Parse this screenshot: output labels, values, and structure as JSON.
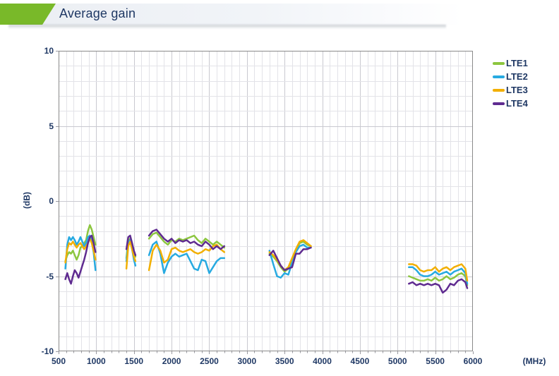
{
  "header": {
    "title": "Average gain"
  },
  "colors": {
    "accent_green": "#79B929",
    "title_text": "#1F3864",
    "axis_text": "#1F3864",
    "grid_minor": "#e3e3e8",
    "grid_major": "#c9c9d0",
    "plot_border": "#8a8a8a"
  },
  "chart_data": {
    "type": "line",
    "title": "Average gain",
    "xlabel": "(MHz)",
    "ylabel": "(dB)",
    "xlim": [
      500,
      6000
    ],
    "ylim": [
      -10,
      10
    ],
    "x_ticks": [
      500,
      1000,
      1500,
      2000,
      2500,
      3000,
      3500,
      4000,
      4500,
      5000,
      5500,
      6000
    ],
    "y_ticks": [
      10,
      5,
      0,
      -5,
      -10
    ],
    "x_minor_step": 100,
    "y_minor_step": 1,
    "grid": true,
    "legend_position": "top-right",
    "segment_x": [
      [
        590,
        615,
        640,
        665,
        690,
        715,
        740,
        765,
        790,
        815,
        840,
        865,
        890,
        915,
        940,
        965,
        990
      ],
      [
        1400,
        1425,
        1450,
        1475,
        1500,
        1520
      ],
      [
        1700,
        1750,
        1800,
        1850,
        1900,
        1950,
        2000,
        2050,
        2100,
        2150,
        2200,
        2250,
        2300,
        2350,
        2400,
        2450,
        2500,
        2550,
        2600,
        2650,
        2700
      ],
      [
        3300,
        3350,
        3400,
        3450,
        3500,
        3550,
        3600,
        3650,
        3700,
        3750,
        3800,
        3850
      ],
      [
        5150,
        5200,
        5250,
        5300,
        5350,
        5400,
        5450,
        5500,
        5550,
        5600,
        5650,
        5700,
        5750,
        5800,
        5850,
        5900,
        5925
      ]
    ],
    "series": [
      {
        "name": "LTE1",
        "color": "#8CC63F",
        "segments_y": [
          [
            -4.0,
            -3.6,
            -3.4,
            -3.5,
            -3.3,
            -3.6,
            -3.9,
            -3.6,
            -3.1,
            -3.0,
            -2.8,
            -2.6,
            -2.0,
            -1.6,
            -1.9,
            -2.4,
            -2.9
          ],
          [
            -3.8,
            -2.6,
            -2.5,
            -3.0,
            -3.4,
            -3.7
          ],
          [
            -2.5,
            -2.2,
            -2.1,
            -2.4,
            -2.7,
            -2.9,
            -2.6,
            -2.7,
            -2.5,
            -2.6,
            -2.5,
            -2.4,
            -2.3,
            -2.6,
            -2.8,
            -2.5,
            -2.7,
            -2.9,
            -2.7,
            -2.9,
            -3.1
          ],
          [
            -3.5,
            -3.7,
            -4.0,
            -4.4,
            -4.7,
            -4.5,
            -3.9,
            -3.3,
            -2.8,
            -2.7,
            -2.9,
            -3.0
          ],
          [
            -5.0,
            -5.1,
            -5.2,
            -5.3,
            -5.3,
            -5.2,
            -5.3,
            -5.1,
            -5.3,
            -5.2,
            -5.0,
            -5.2,
            -5.1,
            -4.9,
            -4.8,
            -5.0,
            -5.6
          ]
        ]
      },
      {
        "name": "LTE2",
        "color": "#27AAE1",
        "segments_y": [
          [
            -4.5,
            -2.9,
            -2.4,
            -2.6,
            -2.4,
            -2.6,
            -2.9,
            -2.7,
            -2.4,
            -2.7,
            -3.0,
            -2.8,
            -2.4,
            -2.3,
            -2.7,
            -3.4,
            -4.6
          ],
          [
            -4.0,
            -2.8,
            -2.6,
            -3.2,
            -3.9,
            -4.3
          ],
          [
            -3.6,
            -2.9,
            -2.7,
            -3.5,
            -4.8,
            -4.1,
            -3.7,
            -3.5,
            -3.7,
            -3.6,
            -3.5,
            -4.0,
            -4.5,
            -4.6,
            -3.9,
            -4.0,
            -4.8,
            -4.4,
            -4.0,
            -3.8,
            -3.8
          ],
          [
            -3.3,
            -4.2,
            -5.0,
            -5.1,
            -4.8,
            -4.9,
            -4.1,
            -3.4,
            -3.0,
            -2.9,
            -3.1,
            -3.1
          ],
          [
            -4.4,
            -4.4,
            -4.6,
            -4.9,
            -5.0,
            -5.0,
            -4.9,
            -4.7,
            -4.9,
            -4.8,
            -4.7,
            -4.9,
            -4.7,
            -4.6,
            -4.5,
            -4.8,
            -5.5
          ]
        ]
      },
      {
        "name": "LTE3",
        "color": "#F2AF00",
        "segments_y": [
          [
            -4.1,
            -3.2,
            -2.8,
            -2.9,
            -2.7,
            -2.9,
            -3.1,
            -2.9,
            -2.8,
            -3.0,
            -3.2,
            -3.0,
            -2.8,
            -2.5,
            -2.8,
            -3.3,
            -3.9
          ],
          [
            -4.5,
            -3.0,
            -2.7,
            -3.2,
            -3.7,
            -4.0
          ],
          [
            -4.6,
            -3.3,
            -2.9,
            -3.3,
            -4.1,
            -3.9,
            -3.2,
            -3.1,
            -3.3,
            -3.4,
            -3.3,
            -3.2,
            -3.4,
            -3.5,
            -3.4,
            -3.2,
            -3.3,
            -3.0,
            -2.9,
            -3.2,
            -3.4
          ],
          [
            -3.4,
            -3.6,
            -3.9,
            -4.3,
            -4.6,
            -4.4,
            -3.8,
            -3.2,
            -2.7,
            -2.6,
            -2.8,
            -3.0
          ],
          [
            -4.2,
            -4.2,
            -4.3,
            -4.6,
            -4.7,
            -4.6,
            -4.6,
            -4.4,
            -4.7,
            -4.5,
            -4.4,
            -4.6,
            -4.4,
            -4.3,
            -4.2,
            -4.5,
            -5.3
          ]
        ]
      },
      {
        "name": "LTE4",
        "color": "#5F2B90",
        "segments_y": [
          [
            -5.2,
            -4.8,
            -5.2,
            -5.5,
            -5.0,
            -4.6,
            -4.8,
            -5.1,
            -4.7,
            -4.3,
            -3.9,
            -3.4,
            -2.8,
            -2.4,
            -2.3,
            -2.8,
            -3.4
          ],
          [
            -3.2,
            -2.4,
            -2.3,
            -2.8,
            -3.3,
            -3.6
          ],
          [
            -2.3,
            -2.0,
            -1.9,
            -2.2,
            -2.5,
            -2.7,
            -2.5,
            -2.8,
            -2.6,
            -2.7,
            -2.6,
            -2.8,
            -2.7,
            -2.9,
            -3.0,
            -2.7,
            -2.9,
            -3.2,
            -3.0,
            -3.2,
            -3.0
          ],
          [
            -3.6,
            -3.3,
            -3.8,
            -4.3,
            -4.6,
            -4.5,
            -4.4,
            -3.5,
            -3.5,
            -3.2,
            -3.2,
            -3.1
          ],
          [
            -5.5,
            -5.4,
            -5.6,
            -5.5,
            -5.6,
            -5.5,
            -5.6,
            -5.5,
            -5.6,
            -6.1,
            -5.9,
            -5.5,
            -5.6,
            -5.3,
            -5.2,
            -5.4,
            -5.8
          ]
        ]
      }
    ]
  }
}
